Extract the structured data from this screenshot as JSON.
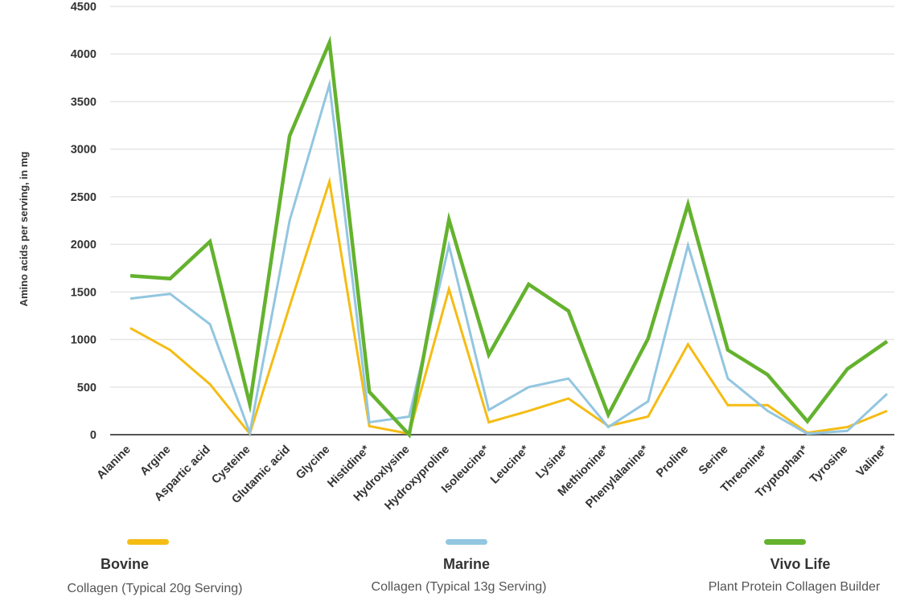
{
  "chart_data": {
    "type": "line",
    "ylabel": "Amino acids per serving, in mg",
    "xlabel": "",
    "ylim": [
      0,
      4500
    ],
    "yticks": [
      0,
      500,
      1000,
      1500,
      2000,
      2500,
      3000,
      3500,
      4000,
      4500
    ],
    "grid": true,
    "legend_position": "bottom",
    "categories": [
      "Alanine",
      "Argine",
      "Aspartic acid",
      "Cysteine",
      "Glutamic acid",
      "Glycine",
      "Histidine*",
      "Hydroxlysine",
      "Hydroxyproline",
      "Isoleucine*",
      "Leucine*",
      "Lysine*",
      "Methionine*",
      "Phenylalanine*",
      "Proline",
      "Serine",
      "Threonine*",
      "Tryptophan*",
      "Tyrosine",
      "Valine*"
    ],
    "series": [
      {
        "name": "Bovine",
        "color": "#f5bc14",
        "values": [
          1120,
          890,
          530,
          10,
          1350,
          2660,
          90,
          10,
          1530,
          130,
          250,
          380,
          90,
          190,
          950,
          310,
          310,
          20,
          80,
          250
        ]
      },
      {
        "name": "Marine",
        "color": "#93c6e0",
        "values": [
          1430,
          1480,
          1160,
          20,
          2250,
          3680,
          130,
          190,
          1990,
          260,
          500,
          590,
          80,
          350,
          1990,
          590,
          250,
          10,
          40,
          430
        ]
      },
      {
        "name": "Vivo Life",
        "color": "#64b22e",
        "values": [
          1670,
          1640,
          2030,
          320,
          3140,
          4120,
          450,
          0,
          2260,
          840,
          1580,
          1300,
          210,
          1010,
          2420,
          890,
          630,
          140,
          690,
          980
        ]
      }
    ]
  },
  "legend": [
    {
      "name": "Bovine",
      "description": "Collagen (Typical 20g Serving)",
      "color": "#f5bc14"
    },
    {
      "name": "Marine",
      "description": "Collagen (Typical 13g Serving)",
      "color": "#93c6e0"
    },
    {
      "name": "Vivo Life",
      "description": "Plant Protein Collagen Builder",
      "color": "#64b22e"
    }
  ]
}
